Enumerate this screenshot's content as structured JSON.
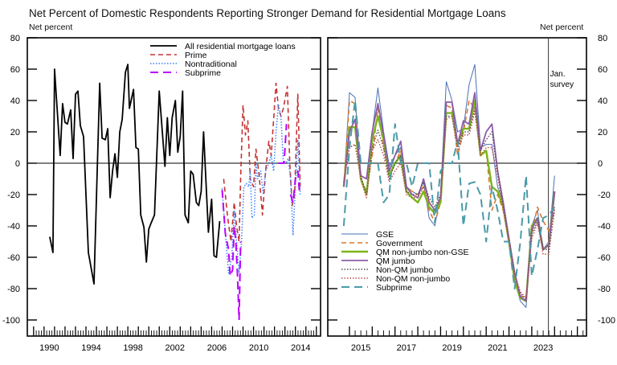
{
  "title": "Net Percent of Domestic Respondents Reporting Stronger Demand for Residential Mortgage Loans",
  "chart_data": [
    {
      "type": "line",
      "ylabel": "Net percent",
      "ylim": [
        -100,
        80
      ],
      "yticks": [
        80,
        60,
        40,
        20,
        0,
        -20,
        -40,
        -60,
        -80,
        -100
      ],
      "xticks": [
        1990,
        1994,
        1998,
        2002,
        2006,
        2010,
        2014
      ],
      "xlim": [
        1988.4,
        2016.4
      ],
      "legend_position": "top-right",
      "series": [
        {
          "name": "All residential mortgage loans",
          "color": "#000000",
          "style": "solid",
          "x": [
            1990.54,
            1990.85,
            1991.0,
            1991.54,
            1991.77,
            1992.0,
            1992.23,
            1992.54,
            1992.77,
            1993.0,
            1993.23,
            1993.46,
            1993.77,
            1994.23,
            1994.77,
            1995.31,
            1995.54,
            1995.85,
            1996.08,
            1996.31,
            1996.54,
            1996.77,
            1997.0,
            1997.23,
            1997.46,
            1997.77,
            1998.0,
            1998.15,
            1998.54,
            1998.77,
            1999.0,
            1999.23,
            1999.54,
            1999.77,
            2000.0,
            2000.23,
            2000.54,
            2001.0,
            2001.54,
            2001.77,
            2002.0,
            2002.23,
            2002.54,
            2002.77,
            2003.0,
            2003.23,
            2003.46,
            2003.77,
            2004.0,
            2004.23,
            2004.54,
            2004.77,
            2005.0,
            2005.23,
            2005.69,
            2006.0,
            2006.23,
            2006.46,
            2006.77
          ],
          "y": [
            -47,
            -57,
            60,
            5,
            38,
            26,
            25,
            34,
            3,
            44,
            46,
            24,
            17,
            -57,
            -77,
            51,
            16,
            15,
            22,
            -22,
            -5,
            6,
            -9,
            20,
            28,
            58,
            63,
            35,
            47,
            10,
            9,
            -33,
            -41,
            -63,
            -42,
            -38,
            -33,
            46,
            -2,
            29,
            5,
            29,
            40,
            7,
            17,
            46,
            -33,
            -38,
            -5,
            -7,
            -25,
            -27,
            -18,
            20,
            -44,
            -23,
            -59,
            -60,
            -37
          ]
        },
        {
          "name": "Prime",
          "color": "#c83232",
          "style": "dashed",
          "x": [
            2007.15,
            2007.54,
            2007.85,
            2008.15,
            2008.38,
            2008.62,
            2008.77,
            2009.0,
            2009.23,
            2009.46,
            2009.69,
            2010.0,
            2010.23,
            2010.54,
            2010.85,
            2011.15,
            2011.46,
            2011.69,
            2012.15,
            2012.38,
            2012.62,
            2012.85,
            2013.23,
            2013.46,
            2013.69,
            2013.92,
            2014.23,
            2014.46
          ],
          "y": [
            -10,
            -35,
            -50,
            -25,
            -40,
            -50,
            -10,
            37,
            18,
            27,
            -10,
            -15,
            9,
            -8,
            -33,
            -5,
            14,
            5,
            51,
            35,
            30,
            35,
            49,
            0,
            -27,
            -20,
            44,
            -15
          ]
        },
        {
          "name": "Nontraditional",
          "color": "#3b82f6",
          "style": "dotted",
          "x": [
            2007.0,
            2007.31,
            2007.62,
            2007.92,
            2008.15,
            2008.38,
            2008.62,
            2008.85,
            2009.08,
            2009.31,
            2009.54,
            2009.69,
            2009.85,
            2010.08,
            2010.23,
            2010.38,
            2010.69,
            2010.92,
            2011.15,
            2011.46,
            2011.69,
            2011.92,
            2012.15,
            2012.38,
            2012.62,
            2012.85,
            2013.08,
            2013.31,
            2013.54,
            2013.77,
            2014.0,
            2014.23,
            2014.46
          ],
          "y": [
            -16,
            -45,
            -70,
            -60,
            -30,
            -50,
            -70,
            -50,
            -15,
            -13,
            -15,
            -5,
            -35,
            -33,
            0,
            -10,
            -5,
            -20,
            -5,
            0,
            5,
            -5,
            20,
            37,
            30,
            0,
            0,
            3,
            -10,
            -46,
            -15,
            15,
            -20
          ]
        },
        {
          "name": "Subprime",
          "color": "#bb00ff",
          "style": "longdash",
          "x": [
            2007.0,
            2007.31,
            2007.62,
            2007.77,
            2008.0,
            2008.15,
            2008.31,
            2008.46,
            2008.62,
            2008.77,
            2010.0,
            2012.38,
            2012.69,
            2012.92,
            2013.15,
            2013.35,
            2013.54,
            2013.77,
            2014.0,
            2014.23,
            2014.38
          ],
          "y": [
            -17,
            -45,
            -55,
            -72,
            -68,
            -40,
            -50,
            -70,
            -100,
            -50,
            null,
            0,
            0,
            0,
            25,
            null,
            -20,
            -25,
            -10,
            -5,
            -18
          ]
        }
      ]
    },
    {
      "type": "line",
      "ylabel": "Net percent",
      "ylim": [
        -100,
        80
      ],
      "yticks": [
        80,
        60,
        40,
        20,
        0,
        -20,
        -40,
        -60,
        -80,
        -100
      ],
      "xticks": [
        2015,
        2017,
        2019,
        2021,
        2023
      ],
      "xlim": [
        2014.05,
        2025.4
      ],
      "annotation": {
        "text": [
          "Jan.",
          "survey"
        ],
        "x": 2023.73
      },
      "legend_position": "bottom-left",
      "x": [
        2014.75,
        2015.0,
        2015.25,
        2015.5,
        2015.75,
        2016.0,
        2016.25,
        2016.5,
        2016.75,
        2017.0,
        2017.25,
        2017.5,
        2017.75,
        2018.0,
        2018.25,
        2018.5,
        2018.75,
        2019.0,
        2019.25,
        2019.5,
        2019.75,
        2020.0,
        2020.25,
        2020.5,
        2020.75,
        2021.0,
        2021.25,
        2021.5,
        2021.75,
        2022.0,
        2022.25,
        2022.5,
        2022.75,
        2023.0,
        2023.25,
        2023.5,
        2023.75,
        2024.0
      ],
      "series": [
        {
          "name": "GSE",
          "color": "#4a6fb5",
          "style": "thin",
          "y": [
            -15,
            45,
            42,
            -8,
            -10,
            20,
            48,
            20,
            -2,
            5,
            10,
            -15,
            -18,
            -20,
            -12,
            -35,
            -40,
            -20,
            52,
            40,
            20,
            22,
            50,
            63,
            10,
            12,
            12,
            -15,
            -25,
            -50,
            -75,
            -88,
            -92,
            -40,
            -30,
            -55,
            -50,
            -8
          ]
        },
        {
          "name": "Government",
          "color": "#d9782d",
          "style": "dashed",
          "y": [
            -15,
            40,
            38,
            -10,
            -18,
            5,
            35,
            10,
            -8,
            0,
            8,
            -15,
            -18,
            -20,
            -15,
            -30,
            -38,
            -25,
            37,
            35,
            5,
            20,
            40,
            35,
            5,
            8,
            -30,
            -20,
            -30,
            -50,
            -70,
            -85,
            -85,
            -45,
            -28,
            -37,
            -43,
            -30
          ]
        },
        {
          "name": "QM non-jumbo non-GSE",
          "color": "#7cb518",
          "style": "thick",
          "y": [
            -15,
            23,
            23,
            -10,
            -20,
            15,
            30,
            15,
            -8,
            0,
            5,
            -18,
            -22,
            -25,
            -18,
            -28,
            -32,
            -25,
            32,
            32,
            12,
            22,
            22,
            40,
            5,
            8,
            -15,
            -18,
            -28,
            -50,
            -75,
            -86,
            -88,
            -40,
            -35,
            -55,
            -52,
            -18
          ]
        },
        {
          "name": "QM jumbo",
          "color": "#8e5ba8",
          "style": "solid",
          "y": [
            -15,
            20,
            28,
            -8,
            -10,
            20,
            38,
            18,
            -5,
            5,
            14,
            -15,
            -20,
            -22,
            -10,
            -25,
            -30,
            -22,
            39,
            39,
            12,
            27,
            25,
            45,
            8,
            20,
            25,
            -5,
            -25,
            -48,
            -70,
            -85,
            -88,
            -42,
            -35,
            -55,
            -52,
            -18
          ]
        },
        {
          "name": "Non-QM jumbo",
          "color": "#555555",
          "style": "dotted",
          "y": [
            -12,
            10,
            12,
            -8,
            -20,
            10,
            21,
            10,
            -10,
            0,
            5,
            -18,
            -20,
            -20,
            -12,
            -22,
            -28,
            -20,
            30,
            30,
            10,
            20,
            20,
            35,
            8,
            15,
            20,
            -5,
            -28,
            -48,
            -70,
            -83,
            -87,
            -45,
            -37,
            -55,
            -55,
            -30
          ]
        },
        {
          "name": "Non-QM non-jumbo",
          "color": "#c0504d",
          "style": "dotted",
          "y": [
            -12,
            10,
            12,
            -10,
            -22,
            8,
            15,
            5,
            -12,
            -5,
            0,
            -20,
            -22,
            -22,
            -15,
            -25,
            -30,
            -22,
            28,
            30,
            8,
            18,
            18,
            33,
            5,
            10,
            10,
            -8,
            -30,
            -50,
            -72,
            -82,
            -86,
            -48,
            -38,
            -58,
            -58,
            -28
          ]
        },
        {
          "name": "Subprime",
          "color": "#4a9aa8",
          "style": "longdash",
          "y": [
            -40,
            10,
            40,
            0,
            0,
            0,
            0,
            -25,
            -20,
            25,
            0,
            0,
            -15,
            0,
            0,
            0,
            -38,
            -5,
            0,
            0,
            14,
            -40,
            -13,
            -12,
            -20,
            -50,
            -15,
            -30,
            -50,
            -50,
            -80,
            -50,
            -8,
            -72,
            -55,
            -35,
            -33,
            -28
          ]
        }
      ]
    }
  ]
}
